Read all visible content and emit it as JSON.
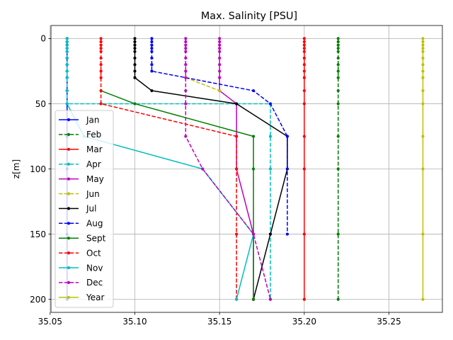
{
  "chart_data": {
    "type": "line",
    "title": "Max. Salinity [PSU]",
    "xlabel": "",
    "ylabel": "z[m]",
    "xlim": [
      35.0505,
      35.2815
    ],
    "ylim": [
      210,
      -10
    ],
    "y_inverted": true,
    "grid": true,
    "legend_position": "left",
    "x_ticks": [
      "35.05",
      "35.10",
      "35.15",
      "35.20",
      "35.25"
    ],
    "x_tick_values": [
      35.05,
      35.1,
      35.15,
      35.2,
      35.25
    ],
    "y_ticks": [
      "0",
      "50",
      "100",
      "150",
      "200"
    ],
    "y_tick_values": [
      0,
      50,
      100,
      150,
      200
    ],
    "series": [
      {
        "name": "Jan",
        "color": "#0000ff",
        "dashed": false,
        "points": [
          [
            35.06,
            0
          ],
          [
            35.06,
            2.5
          ],
          [
            35.06,
            5
          ],
          [
            35.06,
            7.5
          ],
          [
            35.06,
            10
          ],
          [
            35.06,
            15
          ],
          [
            35.06,
            20
          ],
          [
            35.06,
            25
          ],
          [
            35.06,
            30
          ],
          [
            35.06,
            40
          ],
          [
            35.06,
            50
          ],
          [
            35.06,
            75
          ],
          [
            35.06,
            100
          ],
          [
            35.06,
            150
          ],
          [
            35.06,
            200
          ]
        ]
      },
      {
        "name": "Feb",
        "color": "#008000",
        "dashed": true,
        "points": [
          [
            35.22,
            0
          ],
          [
            35.22,
            2.5
          ],
          [
            35.22,
            5
          ],
          [
            35.22,
            7.5
          ],
          [
            35.22,
            10
          ],
          [
            35.22,
            15
          ],
          [
            35.22,
            20
          ],
          [
            35.22,
            25
          ],
          [
            35.22,
            30
          ],
          [
            35.22,
            40
          ],
          [
            35.22,
            50
          ],
          [
            35.22,
            75
          ],
          [
            35.22,
            100
          ],
          [
            35.22,
            150
          ],
          [
            35.22,
            200
          ]
        ]
      },
      {
        "name": "Mar",
        "color": "#ff0000",
        "dashed": false,
        "points": [
          [
            35.2,
            0
          ],
          [
            35.2,
            2.5
          ],
          [
            35.2,
            5
          ],
          [
            35.2,
            7.5
          ],
          [
            35.2,
            10
          ],
          [
            35.2,
            15
          ],
          [
            35.2,
            20
          ],
          [
            35.2,
            25
          ],
          [
            35.2,
            30
          ],
          [
            35.2,
            40
          ],
          [
            35.2,
            50
          ],
          [
            35.2,
            75
          ],
          [
            35.2,
            100
          ],
          [
            35.2,
            150
          ],
          [
            35.2,
            200
          ]
        ]
      },
      {
        "name": "Apr",
        "color": "#00bfbf",
        "dashed": true,
        "points": [
          [
            35.06,
            0
          ],
          [
            35.06,
            2.5
          ],
          [
            35.06,
            5
          ],
          [
            35.06,
            7.5
          ],
          [
            35.06,
            10
          ],
          [
            35.06,
            15
          ],
          [
            35.06,
            20
          ],
          [
            35.06,
            25
          ],
          [
            35.06,
            30
          ],
          [
            35.06,
            40
          ],
          [
            35.06,
            50
          ],
          [
            35.18,
            50
          ],
          [
            35.18,
            75
          ],
          [
            35.18,
            100
          ],
          [
            35.18,
            150
          ],
          [
            35.18,
            200
          ]
        ]
      },
      {
        "name": "May",
        "color": "#bf00bf",
        "dashed": false,
        "points": [
          [
            35.15,
            0
          ],
          [
            35.15,
            2.5
          ],
          [
            35.15,
            5
          ],
          [
            35.15,
            7.5
          ],
          [
            35.15,
            10
          ],
          [
            35.15,
            15
          ],
          [
            35.15,
            20
          ],
          [
            35.15,
            25
          ],
          [
            35.15,
            30
          ],
          [
            35.15,
            40
          ],
          [
            35.16,
            50
          ],
          [
            35.16,
            75
          ],
          [
            35.16,
            100
          ],
          [
            35.17,
            150
          ],
          [
            35.17,
            200
          ]
        ]
      },
      {
        "name": "Jun",
        "color": "#bfbf00",
        "dashed": true,
        "points": [
          [
            35.13,
            30
          ],
          [
            35.15,
            40
          ]
        ]
      },
      {
        "name": "Jul",
        "color": "#000000",
        "dashed": false,
        "points": [
          [
            35.1,
            0
          ],
          [
            35.1,
            2.5
          ],
          [
            35.1,
            5
          ],
          [
            35.1,
            7.5
          ],
          [
            35.1,
            10
          ],
          [
            35.1,
            15
          ],
          [
            35.1,
            20
          ],
          [
            35.1,
            25
          ],
          [
            35.1,
            30
          ],
          [
            35.11,
            40
          ],
          [
            35.16,
            50
          ],
          [
            35.19,
            75
          ],
          [
            35.19,
            100
          ],
          [
            35.18,
            150
          ],
          [
            35.17,
            200
          ]
        ]
      },
      {
        "name": "Aug",
        "color": "#0000ff",
        "dashed": true,
        "points": [
          [
            35.11,
            0
          ],
          [
            35.11,
            2.5
          ],
          [
            35.11,
            5
          ],
          [
            35.11,
            7.5
          ],
          [
            35.11,
            10
          ],
          [
            35.11,
            15
          ],
          [
            35.11,
            20
          ],
          [
            35.11,
            25
          ],
          [
            35.17,
            40
          ],
          [
            35.18,
            50
          ],
          [
            35.19,
            75
          ],
          [
            35.19,
            100
          ],
          [
            35.19,
            150
          ]
        ]
      },
      {
        "name": "Sept",
        "color": "#008000",
        "dashed": false,
        "points": [
          [
            35.08,
            40
          ],
          [
            35.1,
            50
          ],
          [
            35.17,
            75
          ],
          [
            35.17,
            100
          ],
          [
            35.17,
            150
          ],
          [
            35.17,
            200
          ]
        ]
      },
      {
        "name": "Oct",
        "color": "#ff0000",
        "dashed": true,
        "points": [
          [
            35.08,
            0
          ],
          [
            35.08,
            2.5
          ],
          [
            35.08,
            5
          ],
          [
            35.08,
            7.5
          ],
          [
            35.08,
            10
          ],
          [
            35.08,
            15
          ],
          [
            35.08,
            20
          ],
          [
            35.08,
            25
          ],
          [
            35.08,
            30
          ],
          [
            35.08,
            40
          ],
          [
            35.08,
            50
          ],
          [
            35.16,
            75
          ],
          [
            35.16,
            100
          ],
          [
            35.16,
            150
          ],
          [
            35.16,
            200
          ]
        ]
      },
      {
        "name": "Nov",
        "color": "#00bfbf",
        "dashed": false,
        "points": [
          [
            35.06,
            50
          ],
          [
            35.07,
            75
          ],
          [
            35.14,
            100
          ],
          [
            35.17,
            150
          ],
          [
            35.16,
            200
          ]
        ]
      },
      {
        "name": "Dec",
        "color": "#bf00bf",
        "dashed": true,
        "points": [
          [
            35.13,
            0
          ],
          [
            35.13,
            2.5
          ],
          [
            35.13,
            5
          ],
          [
            35.13,
            7.5
          ],
          [
            35.13,
            10
          ],
          [
            35.13,
            15
          ],
          [
            35.13,
            20
          ],
          [
            35.13,
            25
          ],
          [
            35.13,
            30
          ],
          [
            35.13,
            40
          ],
          [
            35.13,
            50
          ],
          [
            35.13,
            75
          ],
          [
            35.14,
            100
          ],
          [
            35.17,
            150
          ],
          [
            35.18,
            200
          ]
        ]
      },
      {
        "name": "Year",
        "color": "#bfbf00",
        "dashed": false,
        "points": [
          [
            35.27,
            0
          ],
          [
            35.27,
            2.5
          ],
          [
            35.27,
            5
          ],
          [
            35.27,
            7.5
          ],
          [
            35.27,
            10
          ],
          [
            35.27,
            15
          ],
          [
            35.27,
            20
          ],
          [
            35.27,
            25
          ],
          [
            35.27,
            30
          ],
          [
            35.27,
            40
          ],
          [
            35.27,
            50
          ],
          [
            35.27,
            75
          ],
          [
            35.27,
            100
          ],
          [
            35.27,
            150
          ],
          [
            35.27,
            200
          ]
        ]
      }
    ]
  }
}
